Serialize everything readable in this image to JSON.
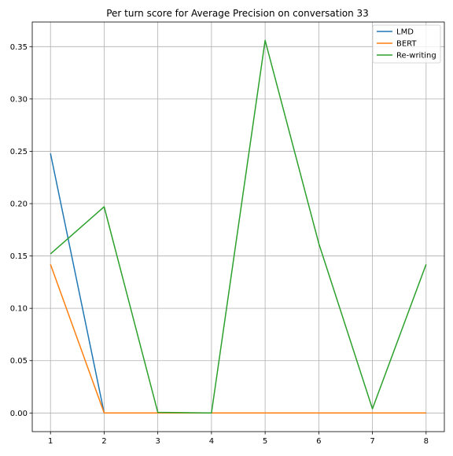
{
  "chart_data": {
    "type": "line",
    "title": "Per turn score for Average Precision on conversation 33",
    "xlabel": "",
    "ylabel": "",
    "x": [
      1,
      2,
      3,
      4,
      5,
      6,
      7,
      8
    ],
    "xlim": [
      0.66,
      8.34
    ],
    "ylim": [
      -0.0178,
      0.3735
    ],
    "xticks": [
      1,
      2,
      3,
      4,
      5,
      6,
      7,
      8
    ],
    "yticks": [
      0.0,
      0.05,
      0.1,
      0.15,
      0.2,
      0.25,
      0.3,
      0.35
    ],
    "ytick_labels": [
      "0.00",
      "0.05",
      "0.10",
      "0.15",
      "0.20",
      "0.25",
      "0.30",
      "0.35"
    ],
    "grid": true,
    "legend": "top-right",
    "series": [
      {
        "name": "LMD",
        "color": "#1f77b4",
        "values": [
          0.248,
          0.0,
          0.0,
          0.0,
          0.0,
          0.0,
          0.0,
          0.0
        ]
      },
      {
        "name": "BERT",
        "color": "#ff7f0e",
        "values": [
          0.142,
          0.0,
          0.0,
          0.0,
          0.0,
          0.0,
          0.0,
          0.0
        ]
      },
      {
        "name": "Re-writing",
        "color": "#2ca02c",
        "values": [
          0.152,
          0.197,
          0.0006,
          0.0,
          0.356,
          0.162,
          0.004,
          0.142
        ]
      }
    ]
  }
}
